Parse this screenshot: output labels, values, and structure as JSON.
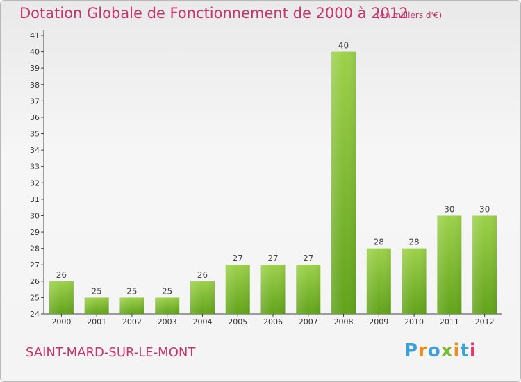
{
  "chart_data": {
    "type": "bar",
    "title": "Dotation Globale de Fonctionnement de 2000 à 2012",
    "subtitle": "(en milliers d'€)",
    "categories": [
      "2000",
      "2001",
      "2002",
      "2003",
      "2004",
      "2005",
      "2006",
      "2007",
      "2008",
      "2009",
      "2010",
      "2011",
      "2012"
    ],
    "values": [
      26,
      25,
      25,
      25,
      26,
      27,
      27,
      27,
      40,
      28,
      28,
      30,
      30
    ],
    "ylim": [
      24,
      41
    ],
    "yticks": [
      24,
      25,
      26,
      27,
      28,
      29,
      30,
      31,
      32,
      33,
      34,
      35,
      36,
      37,
      38,
      39,
      40,
      41
    ],
    "grid": false,
    "legend": "none",
    "bar_color": "#7fba2e"
  },
  "footer": {
    "city": "SAINT-MARD-SUR-LE-MONT",
    "logo_text": "Proxiti",
    "logo_letters": [
      {
        "ch": "P",
        "color": "#3f9fd8"
      },
      {
        "ch": "r",
        "color": "#f08c1e"
      },
      {
        "ch": "o",
        "color": "#3f9fd8"
      },
      {
        "ch": "x",
        "color": "#7ab935"
      },
      {
        "ch": "i",
        "color": "#f08c1e"
      },
      {
        "ch": "t",
        "color": "#3f9fd8"
      },
      {
        "ch": "i",
        "color": "#e03a6b"
      }
    ]
  }
}
